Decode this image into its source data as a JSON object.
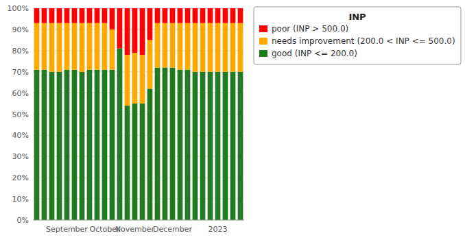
{
  "chart_data": {
    "type": "bar",
    "stacked": true,
    "legend_title": "INP",
    "categories": [
      null,
      null,
      null,
      null,
      "September",
      null,
      null,
      null,
      null,
      "October",
      null,
      null,
      null,
      "November",
      null,
      null,
      null,
      null,
      "December",
      null,
      null,
      null,
      null,
      null,
      "2023",
      null,
      null,
      null
    ],
    "series": [
      {
        "name": "good (INP <= 200.0)",
        "color": "#207a20",
        "values": [
          71,
          71,
          70,
          70,
          71,
          71,
          70,
          71,
          71,
          71,
          71,
          81,
          54,
          55,
          55,
          62,
          72,
          72,
          72,
          71,
          71,
          70,
          70,
          70,
          70,
          70,
          70,
          70
        ]
      },
      {
        "name": "needs improvement (200.0 < INP <= 500.0)",
        "color": "#ffaa00",
        "values": [
          22,
          22,
          23,
          23,
          22,
          22,
          23,
          22,
          22,
          22,
          19,
          0,
          24,
          24,
          23,
          23,
          21,
          21,
          21,
          22,
          22,
          23,
          23,
          23,
          23,
          23,
          23,
          23
        ]
      },
      {
        "name": "poor (INP > 500.0)",
        "color": "#ff0000",
        "values": [
          7,
          7,
          7,
          7,
          7,
          7,
          7,
          7,
          7,
          7,
          10,
          19,
          22,
          21,
          22,
          15,
          7,
          7,
          7,
          7,
          7,
          7,
          7,
          7,
          7,
          7,
          7,
          7
        ]
      }
    ],
    "ylim": [
      0,
      100
    ],
    "yticks": [
      {
        "value": 0,
        "label": "0%"
      },
      {
        "value": 10,
        "label": "10%"
      },
      {
        "value": 20,
        "label": "20%"
      },
      {
        "value": 30,
        "label": "30%"
      },
      {
        "value": 40,
        "label": "40%"
      },
      {
        "value": 50,
        "label": "50%"
      },
      {
        "value": 60,
        "label": "60%"
      },
      {
        "value": 70,
        "label": "70%"
      },
      {
        "value": 80,
        "label": "80%"
      },
      {
        "value": 90,
        "label": "90%"
      },
      {
        "value": 100,
        "label": "100%"
      }
    ],
    "grid": true,
    "legend": "upper right"
  }
}
